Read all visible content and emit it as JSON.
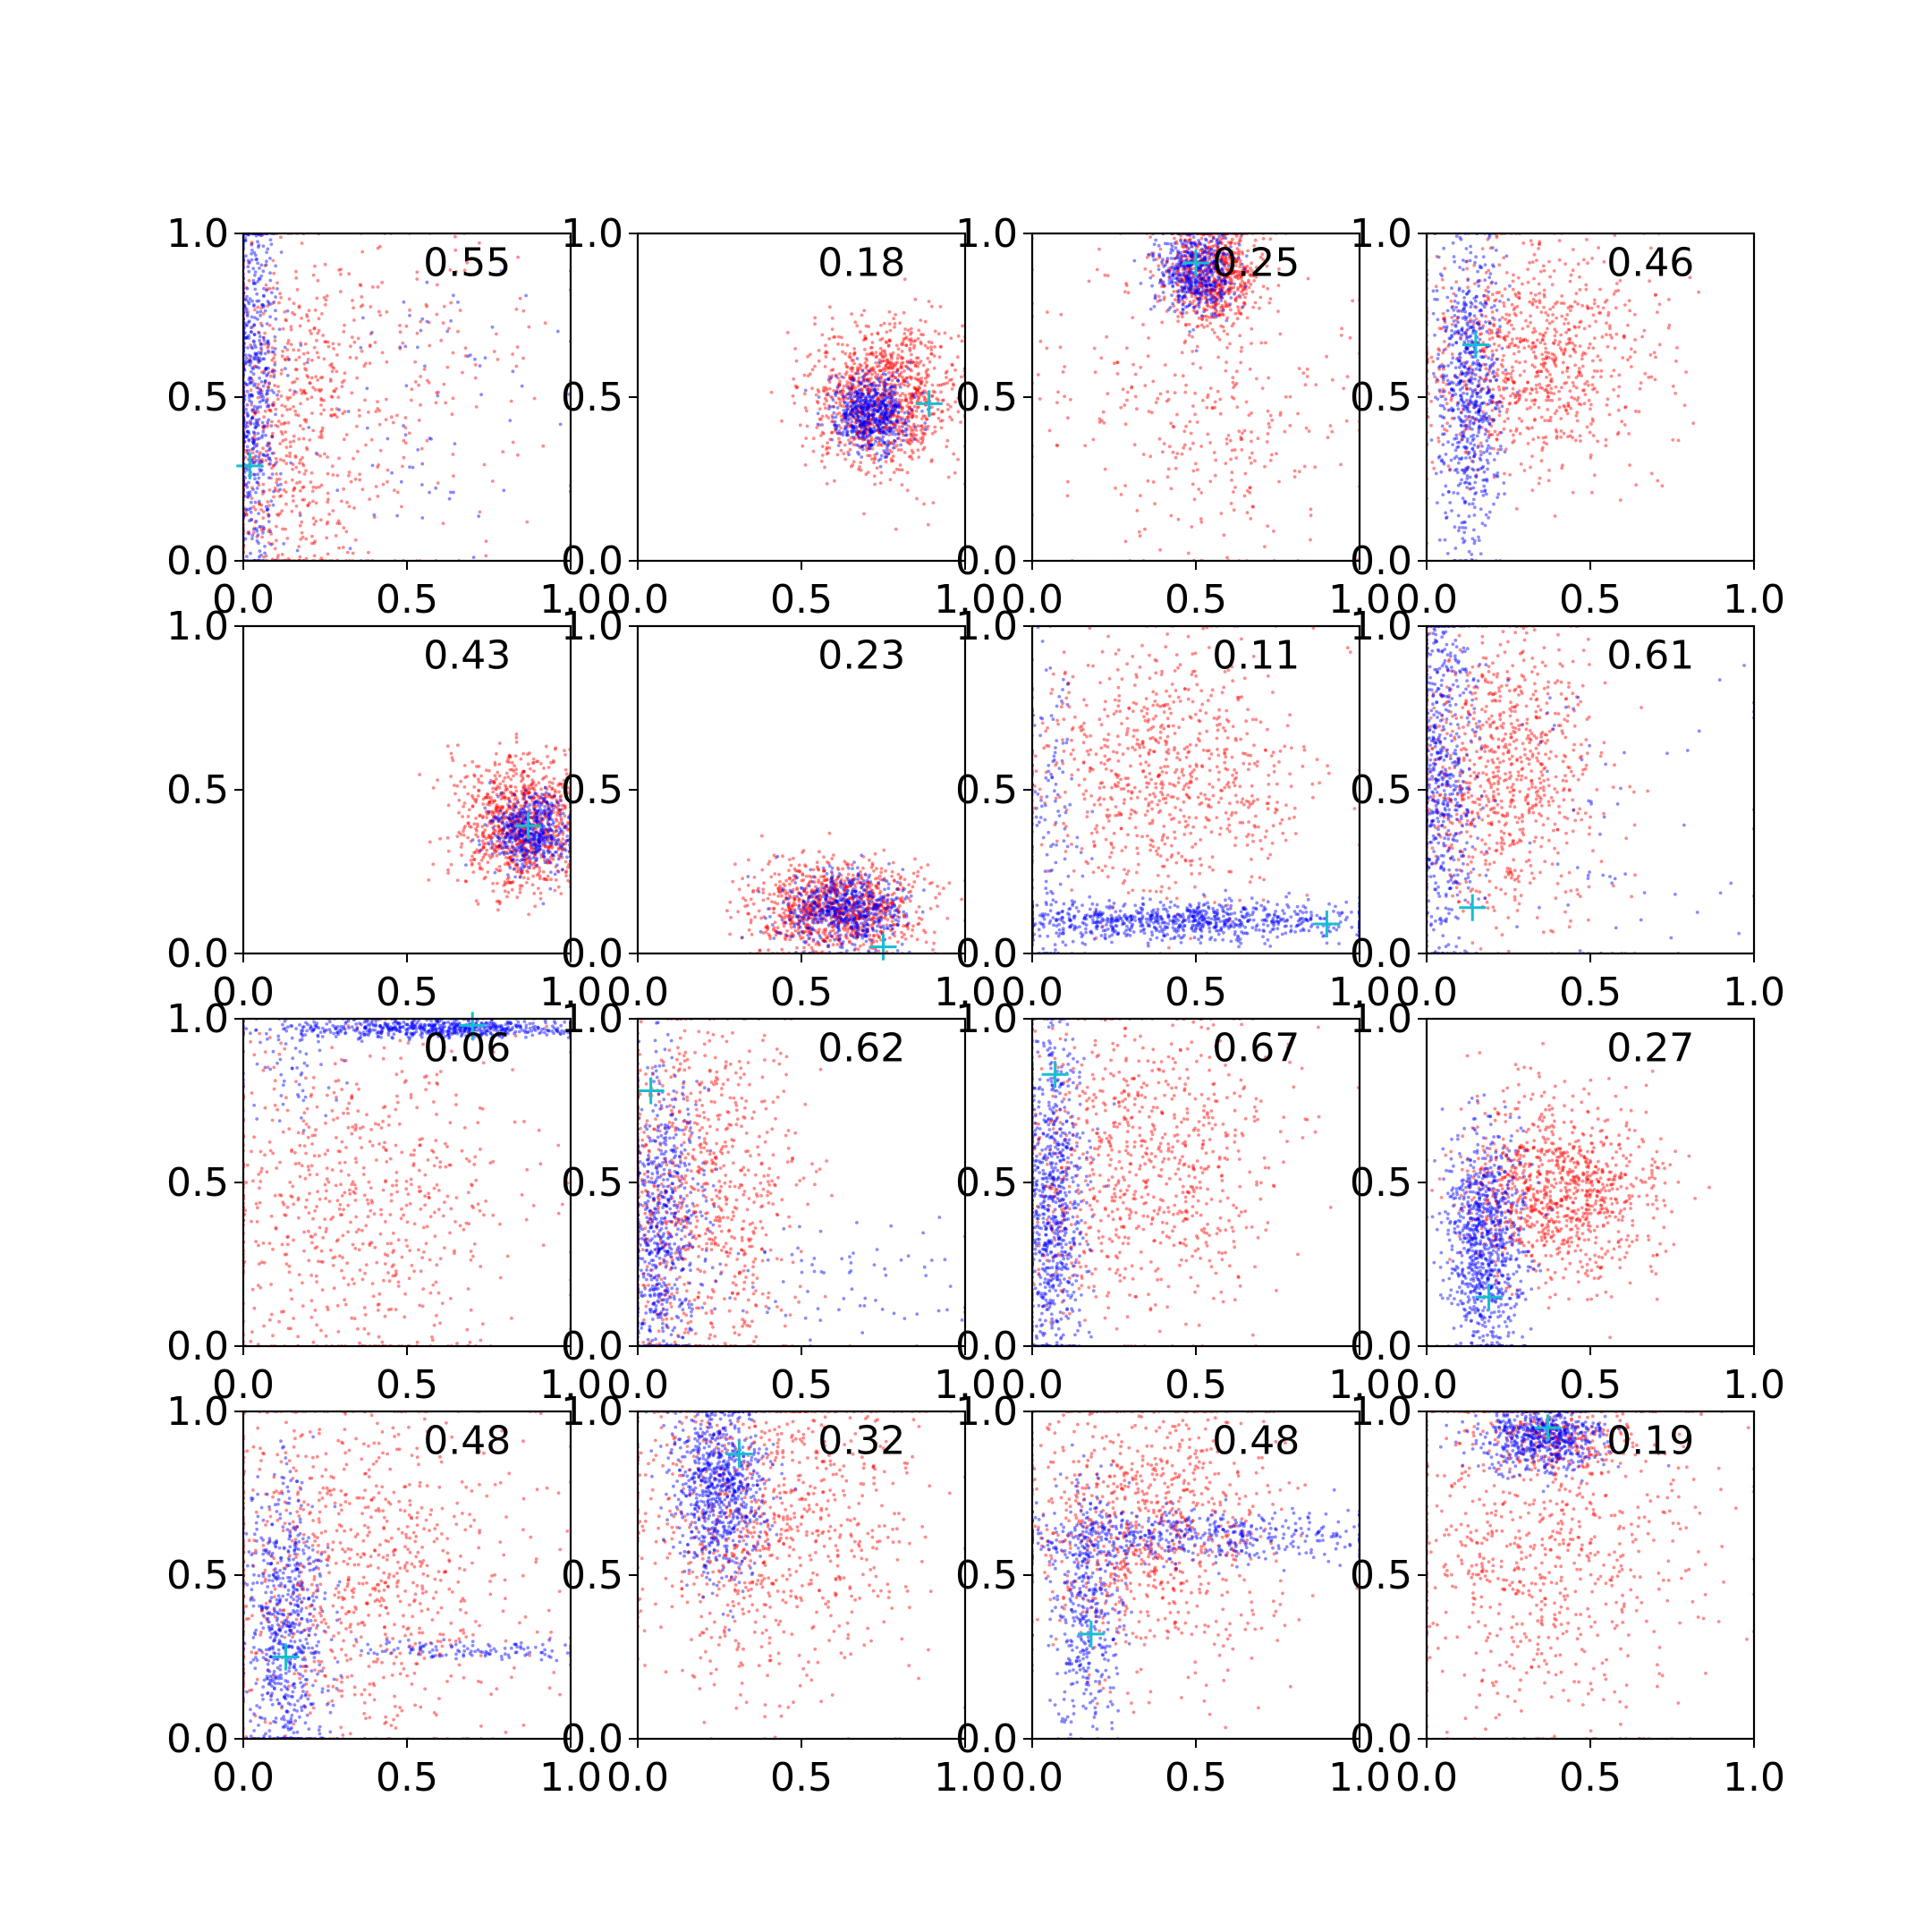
{
  "colors": {
    "series_a": "#ff0000",
    "series_b": "#0000ff",
    "marker": "#17becf",
    "axes": "#000000"
  },
  "icons": {
    "marker": "plus-marker-icon"
  },
  "chart_data": [
    {
      "type": "scatter",
      "xlim": [
        0,
        1
      ],
      "ylim": [
        0,
        1
      ],
      "xticks": [
        "0.0",
        "0.5",
        "1.0"
      ],
      "yticks": [
        "0.0",
        "0.5",
        "1.0"
      ],
      "annotation": "0.55",
      "marker_point": [
        0.02,
        0.29
      ],
      "series": [
        {
          "color": "#ff0000",
          "clusters": [
            {
              "cx": 0.12,
              "cy": 0.4,
              "sx": 0.14,
              "sy": 0.28,
              "n": 700
            },
            {
              "cx": 0.45,
              "cy": 0.55,
              "sx": 0.25,
              "sy": 0.25,
              "n": 200
            }
          ]
        },
        {
          "color": "#0000ff",
          "clusters": [
            {
              "cx": 0.03,
              "cy": 0.55,
              "sx": 0.04,
              "sy": 0.3,
              "n": 650
            },
            {
              "cx": 0.55,
              "cy": 0.4,
              "sx": 0.28,
              "sy": 0.3,
              "n": 90
            }
          ]
        }
      ]
    },
    {
      "type": "scatter",
      "xlim": [
        0,
        1
      ],
      "ylim": [
        0,
        1
      ],
      "xticks": [
        "0.0",
        "0.5",
        "1.0"
      ],
      "yticks": [
        "0.0",
        "0.5",
        "1.0"
      ],
      "annotation": "0.18",
      "marker_point": [
        0.89,
        0.48
      ],
      "series": [
        {
          "color": "#ff0000",
          "clusters": [
            {
              "cx": 0.75,
              "cy": 0.5,
              "sx": 0.11,
              "sy": 0.11,
              "n": 1100
            }
          ]
        },
        {
          "color": "#0000ff",
          "clusters": [
            {
              "cx": 0.71,
              "cy": 0.45,
              "sx": 0.06,
              "sy": 0.06,
              "n": 600
            }
          ]
        }
      ]
    },
    {
      "type": "scatter",
      "xlim": [
        0,
        1
      ],
      "ylim": [
        0,
        1
      ],
      "xticks": [
        "0.0",
        "0.5",
        "1.0"
      ],
      "yticks": [
        "0.0",
        "0.5",
        "1.0"
      ],
      "annotation": "0.25",
      "marker_point": [
        0.5,
        0.91
      ],
      "series": [
        {
          "color": "#ff0000",
          "clusters": [
            {
              "cx": 0.55,
              "cy": 0.88,
              "sx": 0.07,
              "sy": 0.08,
              "n": 700
            },
            {
              "cx": 0.5,
              "cy": 0.45,
              "sx": 0.25,
              "sy": 0.25,
              "n": 350
            }
          ]
        },
        {
          "color": "#0000ff",
          "clusters": [
            {
              "cx": 0.5,
              "cy": 0.88,
              "sx": 0.06,
              "sy": 0.07,
              "n": 500
            }
          ]
        }
      ]
    },
    {
      "type": "scatter",
      "xlim": [
        0,
        1
      ],
      "ylim": [
        0,
        1
      ],
      "xticks": [
        "0.0",
        "0.5",
        "1.0"
      ],
      "yticks": [
        "0.0",
        "0.5",
        "1.0"
      ],
      "annotation": "0.46",
      "marker_point": [
        0.15,
        0.66
      ],
      "series": [
        {
          "color": "#ff0000",
          "clusters": [
            {
              "cx": 0.3,
              "cy": 0.62,
              "sx": 0.2,
              "sy": 0.18,
              "n": 900
            }
          ]
        },
        {
          "color": "#0000ff",
          "clusters": [
            {
              "cx": 0.13,
              "cy": 0.5,
              "sx": 0.05,
              "sy": 0.25,
              "n": 700
            }
          ]
        }
      ]
    },
    {
      "type": "scatter",
      "xlim": [
        0,
        1
      ],
      "ylim": [
        0,
        1
      ],
      "xticks": [
        "0.0",
        "0.5",
        "1.0"
      ],
      "yticks": [
        "0.0",
        "0.5",
        "1.0"
      ],
      "annotation": "0.43",
      "marker_point": [
        0.87,
        0.39
      ],
      "series": [
        {
          "color": "#ff0000",
          "clusters": [
            {
              "cx": 0.85,
              "cy": 0.4,
              "sx": 0.1,
              "sy": 0.1,
              "n": 1000
            }
          ]
        },
        {
          "color": "#0000ff",
          "clusters": [
            {
              "cx": 0.88,
              "cy": 0.37,
              "sx": 0.06,
              "sy": 0.06,
              "n": 500
            }
          ]
        }
      ]
    },
    {
      "type": "scatter",
      "xlim": [
        0,
        1
      ],
      "ylim": [
        0,
        1
      ],
      "xticks": [
        "0.0",
        "0.5",
        "1.0"
      ],
      "yticks": [
        "0.0",
        "0.5",
        "1.0"
      ],
      "annotation": "0.23",
      "marker_point": [
        0.75,
        0.02
      ],
      "series": [
        {
          "color": "#ff0000",
          "clusters": [
            {
              "cx": 0.6,
              "cy": 0.14,
              "sx": 0.13,
              "sy": 0.07,
              "n": 1000
            }
          ]
        },
        {
          "color": "#0000ff",
          "clusters": [
            {
              "cx": 0.63,
              "cy": 0.13,
              "sx": 0.1,
              "sy": 0.06,
              "n": 600
            }
          ]
        }
      ]
    },
    {
      "type": "scatter",
      "xlim": [
        0,
        1
      ],
      "ylim": [
        0,
        1
      ],
      "xticks": [
        "0.0",
        "0.5",
        "1.0"
      ],
      "yticks": [
        "0.0",
        "0.5",
        "1.0"
      ],
      "annotation": "0.11",
      "marker_point": [
        0.9,
        0.09
      ],
      "series": [
        {
          "color": "#ff0000",
          "clusters": [
            {
              "cx": 0.4,
              "cy": 0.55,
              "sx": 0.22,
              "sy": 0.2,
              "n": 800
            }
          ]
        },
        {
          "color": "#0000ff",
          "clusters": [
            {
              "cx": 0.45,
              "cy": 0.1,
              "sx": 0.3,
              "sy": 0.03,
              "n": 800
            },
            {
              "cx": 0.05,
              "cy": 0.4,
              "sx": 0.05,
              "sy": 0.3,
              "n": 150
            }
          ]
        }
      ]
    },
    {
      "type": "scatter",
      "xlim": [
        0,
        1
      ],
      "ylim": [
        0,
        1
      ],
      "xticks": [
        "0.0",
        "0.5",
        "1.0"
      ],
      "yticks": [
        "0.0",
        "0.5",
        "1.0"
      ],
      "annotation": "0.61",
      "marker_point": [
        0.14,
        0.14
      ],
      "series": [
        {
          "color": "#ff0000",
          "clusters": [
            {
              "cx": 0.22,
              "cy": 0.55,
              "sx": 0.15,
              "sy": 0.22,
              "n": 900
            }
          ]
        },
        {
          "color": "#0000ff",
          "clusters": [
            {
              "cx": 0.05,
              "cy": 0.55,
              "sx": 0.05,
              "sy": 0.28,
              "n": 600
            },
            {
              "cx": 0.5,
              "cy": 0.4,
              "sx": 0.3,
              "sy": 0.3,
              "n": 80
            }
          ]
        }
      ]
    },
    {
      "type": "scatter",
      "xlim": [
        0,
        1
      ],
      "ylim": [
        0,
        1
      ],
      "xticks": [
        "0.0",
        "0.5",
        "1.0"
      ],
      "yticks": [
        "0.0",
        "0.5",
        "1.0"
      ],
      "annotation": "0.06",
      "marker_point": [
        0.7,
        0.98
      ],
      "series": [
        {
          "color": "#ff0000",
          "clusters": [
            {
              "cx": 0.35,
              "cy": 0.45,
              "sx": 0.25,
              "sy": 0.28,
              "n": 700
            }
          ]
        },
        {
          "color": "#0000ff",
          "clusters": [
            {
              "cx": 0.6,
              "cy": 0.97,
              "sx": 0.25,
              "sy": 0.015,
              "n": 600
            },
            {
              "cx": 0.15,
              "cy": 0.85,
              "sx": 0.08,
              "sy": 0.08,
              "n": 60
            }
          ]
        }
      ]
    },
    {
      "type": "scatter",
      "xlim": [
        0,
        1
      ],
      "ylim": [
        0,
        1
      ],
      "xticks": [
        "0.0",
        "0.5",
        "1.0"
      ],
      "yticks": [
        "0.0",
        "0.5",
        "1.0"
      ],
      "annotation": "0.62",
      "marker_point": [
        0.04,
        0.78
      ],
      "series": [
        {
          "color": "#ff0000",
          "clusters": [
            {
              "cx": 0.18,
              "cy": 0.45,
              "sx": 0.15,
              "sy": 0.28,
              "n": 900
            }
          ]
        },
        {
          "color": "#0000ff",
          "clusters": [
            {
              "cx": 0.07,
              "cy": 0.35,
              "sx": 0.06,
              "sy": 0.25,
              "n": 700
            },
            {
              "cx": 0.6,
              "cy": 0.2,
              "sx": 0.25,
              "sy": 0.1,
              "n": 80
            }
          ]
        }
      ]
    },
    {
      "type": "scatter",
      "xlim": [
        0,
        1
      ],
      "ylim": [
        0,
        1
      ],
      "xticks": [
        "0.0",
        "0.5",
        "1.0"
      ],
      "yticks": [
        "0.0",
        "0.5",
        "1.0"
      ],
      "annotation": "0.67",
      "marker_point": [
        0.07,
        0.83
      ],
      "series": [
        {
          "color": "#ff0000",
          "clusters": [
            {
              "cx": 0.3,
              "cy": 0.55,
              "sx": 0.22,
              "sy": 0.25,
              "n": 900
            }
          ]
        },
        {
          "color": "#0000ff",
          "clusters": [
            {
              "cx": 0.06,
              "cy": 0.45,
              "sx": 0.05,
              "sy": 0.28,
              "n": 800
            }
          ]
        }
      ]
    },
    {
      "type": "scatter",
      "xlim": [
        0,
        1
      ],
      "ylim": [
        0,
        1
      ],
      "xticks": [
        "0.0",
        "0.5",
        "1.0"
      ],
      "yticks": [
        "0.0",
        "0.5",
        "1.0"
      ],
      "annotation": "0.27",
      "marker_point": [
        0.19,
        0.15
      ],
      "series": [
        {
          "color": "#ff0000",
          "clusters": [
            {
              "cx": 0.4,
              "cy": 0.48,
              "sx": 0.15,
              "sy": 0.14,
              "n": 1000
            }
          ]
        },
        {
          "color": "#0000ff",
          "clusters": [
            {
              "cx": 0.18,
              "cy": 0.3,
              "sx": 0.06,
              "sy": 0.18,
              "n": 900
            }
          ]
        }
      ]
    },
    {
      "type": "scatter",
      "xlim": [
        0,
        1
      ],
      "ylim": [
        0,
        1
      ],
      "xticks": [
        "0.0",
        "0.5",
        "1.0"
      ],
      "yticks": [
        "0.0",
        "0.5",
        "1.0"
      ],
      "annotation": "0.48",
      "marker_point": [
        0.13,
        0.25
      ],
      "series": [
        {
          "color": "#ff0000",
          "clusters": [
            {
              "cx": 0.35,
              "cy": 0.5,
              "sx": 0.25,
              "sy": 0.28,
              "n": 900
            }
          ]
        },
        {
          "color": "#0000ff",
          "clusters": [
            {
              "cx": 0.13,
              "cy": 0.3,
              "sx": 0.06,
              "sy": 0.25,
              "n": 700
            },
            {
              "cx": 0.7,
              "cy": 0.27,
              "sx": 0.2,
              "sy": 0.015,
              "n": 120
            }
          ]
        }
      ]
    },
    {
      "type": "scatter",
      "xlim": [
        0,
        1
      ],
      "ylim": [
        0,
        1
      ],
      "xticks": [
        "0.0",
        "0.5",
        "1.0"
      ],
      "yticks": [
        "0.0",
        "0.5",
        "1.0"
      ],
      "annotation": "0.32",
      "marker_point": [
        0.31,
        0.87
      ],
      "series": [
        {
          "color": "#ff0000",
          "clusters": [
            {
              "cx": 0.4,
              "cy": 0.65,
              "sx": 0.22,
              "sy": 0.25,
              "n": 900
            }
          ]
        },
        {
          "color": "#0000ff",
          "clusters": [
            {
              "cx": 0.25,
              "cy": 0.78,
              "sx": 0.07,
              "sy": 0.13,
              "n": 800
            }
          ]
        }
      ]
    },
    {
      "type": "scatter",
      "xlim": [
        0,
        1
      ],
      "ylim": [
        0,
        1
      ],
      "xticks": [
        "0.0",
        "0.5",
        "1.0"
      ],
      "yticks": [
        "0.0",
        "0.5",
        "1.0"
      ],
      "annotation": "0.48",
      "marker_point": [
        0.18,
        0.32
      ],
      "series": [
        {
          "color": "#ff0000",
          "clusters": [
            {
              "cx": 0.35,
              "cy": 0.65,
              "sx": 0.2,
              "sy": 0.22,
              "n": 900
            }
          ]
        },
        {
          "color": "#0000ff",
          "clusters": [
            {
              "cx": 0.45,
              "cy": 0.62,
              "sx": 0.3,
              "sy": 0.04,
              "n": 500
            },
            {
              "cx": 0.17,
              "cy": 0.4,
              "sx": 0.05,
              "sy": 0.2,
              "n": 400
            }
          ]
        }
      ]
    },
    {
      "type": "scatter",
      "xlim": [
        0,
        1
      ],
      "ylim": [
        0,
        1
      ],
      "xticks": [
        "0.0",
        "0.5",
        "1.0"
      ],
      "yticks": [
        "0.0",
        "0.5",
        "1.0"
      ],
      "annotation": "0.19",
      "marker_point": [
        0.37,
        0.95
      ],
      "series": [
        {
          "color": "#ff0000",
          "clusters": [
            {
              "cx": 0.35,
              "cy": 0.6,
              "sx": 0.25,
              "sy": 0.28,
              "n": 800
            },
            {
              "cx": 0.4,
              "cy": 0.92,
              "sx": 0.1,
              "sy": 0.05,
              "n": 200
            }
          ]
        },
        {
          "color": "#0000ff",
          "clusters": [
            {
              "cx": 0.35,
              "cy": 0.92,
              "sx": 0.1,
              "sy": 0.05,
              "n": 600
            }
          ]
        }
      ]
    }
  ]
}
